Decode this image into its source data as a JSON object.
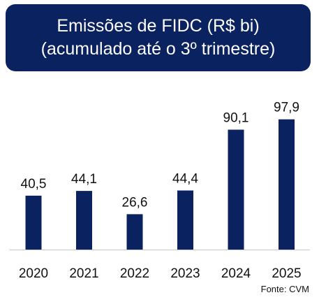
{
  "title": {
    "line1": "Emissões de FIDC (R$ bi)",
    "line2": "(acumulado até o 3º trimestre)"
  },
  "source": "Fonte: CVM",
  "colors": {
    "bar": "#0b2260",
    "title_background": "#0b2260",
    "title_text": "#ffffff",
    "baseline": "#c8c8c8",
    "text": "#111111"
  },
  "chart_data": {
    "type": "bar",
    "categories": [
      "2020",
      "2021",
      "2022",
      "2023",
      "2024",
      "2025"
    ],
    "values": [
      40.5,
      44.1,
      26.6,
      44.4,
      90.1,
      97.9
    ],
    "value_labels": [
      "40,5",
      "44,1",
      "26,6",
      "44,4",
      "90,1",
      "97,9"
    ],
    "title": "Emissões de FIDC (R$ bi) (acumulado até o 3º trimestre)",
    "xlabel": "",
    "ylabel": "",
    "ylim": [
      0,
      100
    ],
    "grid": false,
    "legend": "none",
    "y_axis_visible": false
  }
}
